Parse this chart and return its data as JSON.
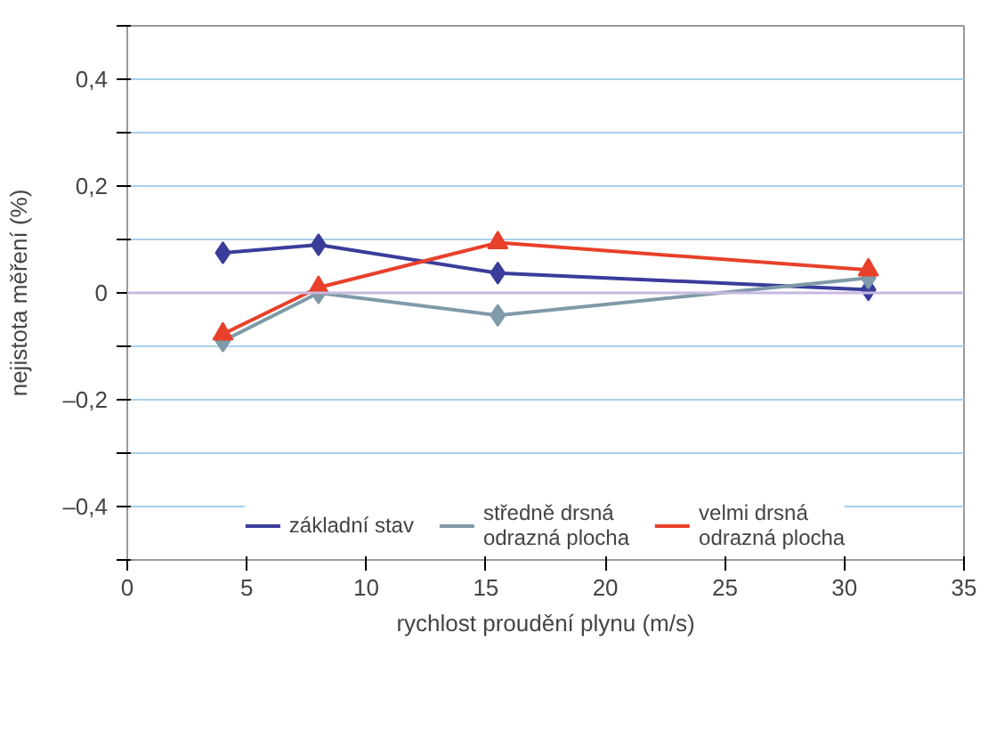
{
  "chart_data": {
    "type": "line",
    "xlabel": "rychlost proudění plynu (m/s)",
    "ylabel": "nejistota měření (%)",
    "xlim": [
      0,
      35
    ],
    "xticks": [
      0,
      5,
      10,
      15,
      20,
      25,
      30,
      35
    ],
    "ylim": [
      -0.5,
      0.5
    ],
    "yticks": [
      {
        "value": -0.5,
        "label": null
      },
      {
        "value": -0.4,
        "label": "–0,4"
      },
      {
        "value": -0.3,
        "label": null
      },
      {
        "value": -0.2,
        "label": "–0,2"
      },
      {
        "value": -0.1,
        "label": null
      },
      {
        "value": 0,
        "label": "0"
      },
      {
        "value": 0.1,
        "label": null
      },
      {
        "value": 0.2,
        "label": "0,2"
      },
      {
        "value": 0.3,
        "label": null
      },
      {
        "value": 0.4,
        "label": "0,4"
      },
      {
        "value": 0.5,
        "label": null
      }
    ],
    "grid": "y",
    "legend": "bottom",
    "line_style": "solid",
    "ref_lines": [
      {
        "axis": "y",
        "value": 0,
        "label": null,
        "color": "#c8b8e0"
      }
    ],
    "series": [
      {
        "name": "základní stav",
        "color": "#3a3d9a",
        "marker": "diamond",
        "x": [
          4,
          8,
          15.5,
          31
        ],
        "values": [
          0.075,
          0.09,
          0.037,
          0.006
        ]
      },
      {
        "name": "středně drsná odrazná plocha",
        "color": "#7f9aa8",
        "marker": "diamond",
        "x": [
          4,
          8,
          15.5,
          31
        ],
        "values": [
          -0.09,
          0.0,
          -0.042,
          0.028
        ]
      },
      {
        "name": "velmi drsná odrazná plocha",
        "color": "#e8402a",
        "marker": "triangle",
        "x": [
          4,
          8,
          15.5,
          31
        ],
        "values": [
          -0.077,
          0.01,
          0.094,
          0.043
        ]
      }
    ]
  }
}
